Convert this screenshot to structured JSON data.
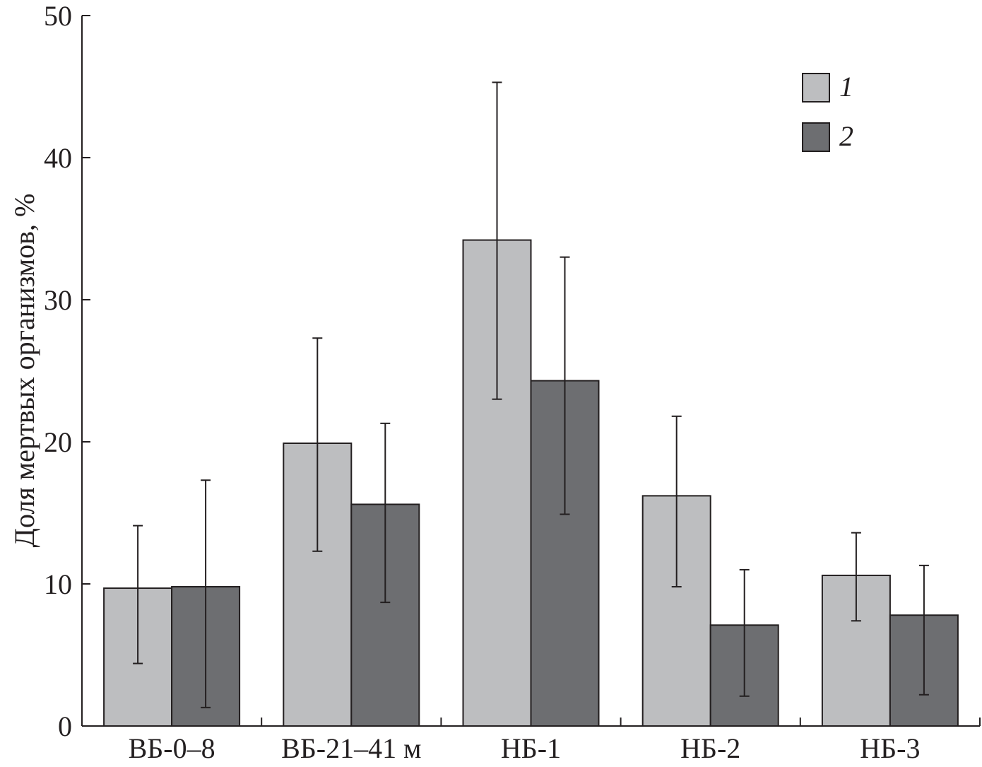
{
  "chart_data": {
    "type": "bar",
    "title": "",
    "xlabel": "",
    "ylabel": "Доля мертвых организмов, %",
    "ylim": [
      0,
      50
    ],
    "yticks": [
      0,
      10,
      20,
      30,
      40,
      50
    ],
    "categories": [
      "ВБ-0–8",
      "ВБ-21–41 м",
      "НБ-1",
      "НБ-2",
      "НБ-3"
    ],
    "series": [
      {
        "name": "1",
        "color": "#bdbec0",
        "values": [
          9.7,
          19.9,
          34.2,
          16.2,
          10.6
        ],
        "err_low": [
          4.4,
          12.3,
          23.0,
          9.8,
          7.4
        ],
        "err_high": [
          14.1,
          27.3,
          45.3,
          21.8,
          13.6
        ]
      },
      {
        "name": "2",
        "color": "#6d6e71",
        "values": [
          9.8,
          15.6,
          24.3,
          7.1,
          7.8
        ],
        "err_low": [
          1.3,
          8.7,
          14.9,
          2.1,
          2.2
        ],
        "err_high": [
          17.3,
          21.3,
          33.0,
          11.0,
          11.3
        ]
      }
    ],
    "grid": false,
    "legend_position": "top-right"
  }
}
